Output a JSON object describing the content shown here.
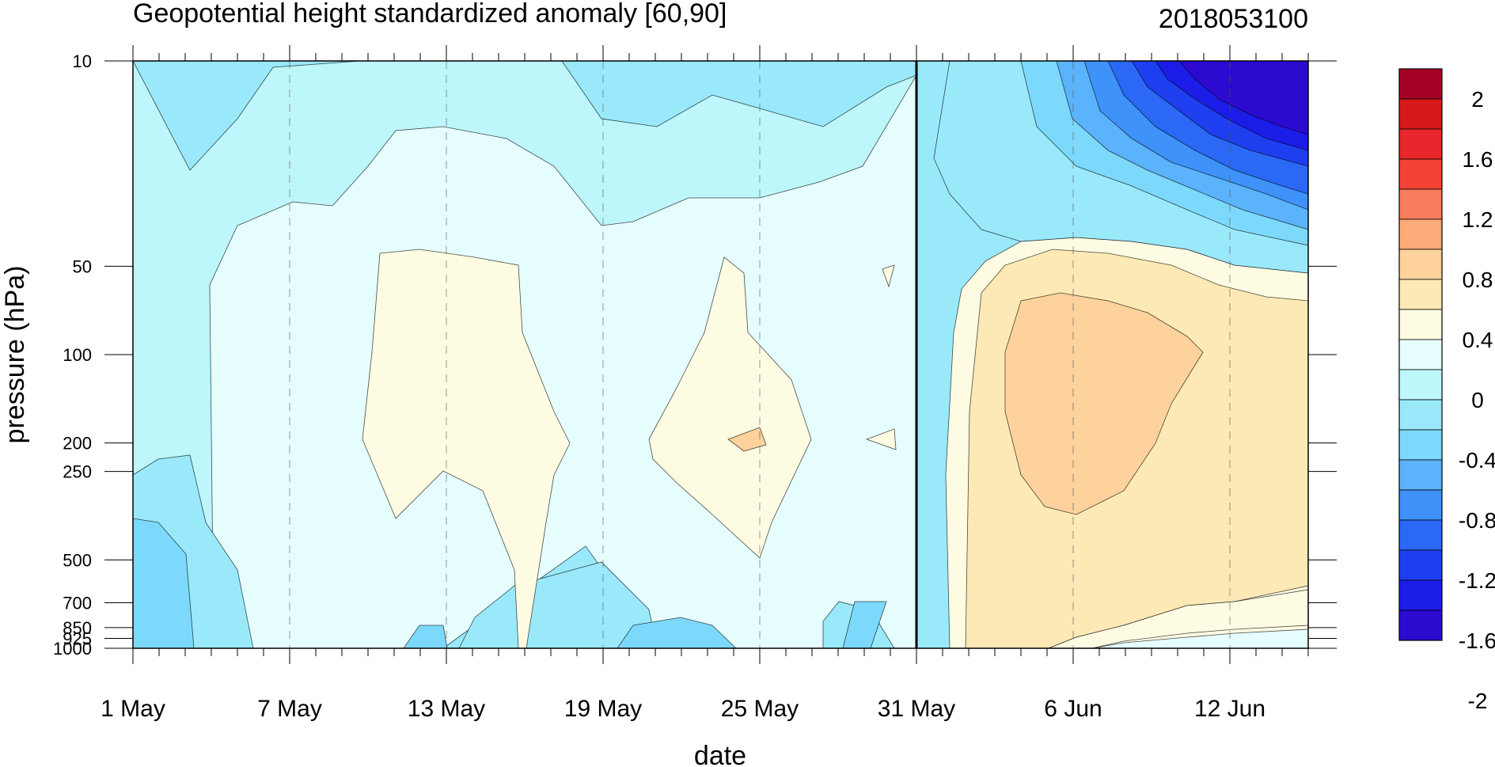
{
  "chart_data": {
    "type": "heatmap",
    "title": "Geopotential height standardized anomaly [60,90]",
    "run_label": "2018053100",
    "xlabel": "date",
    "ylabel": "pressure (hPa)",
    "x_tick_labels": [
      "1 May",
      "7 May",
      "13 May",
      "19 May",
      "25 May",
      "31 May",
      "6 Jun",
      "12 Jun"
    ],
    "x_tick_day_index": [
      0,
      6,
      12,
      18,
      24,
      30,
      36,
      42
    ],
    "x_range_days": [
      0,
      45
    ],
    "y_scale": "log-pressure",
    "y_range_hpa": [
      1000,
      10
    ],
    "y_tick_labels": [
      "10",
      "50",
      "100",
      "200",
      "250",
      "500",
      "700",
      "850",
      "925",
      "1000"
    ],
    "y_tick_values": [
      10,
      50,
      100,
      200,
      250,
      500,
      700,
      850,
      925,
      1000
    ],
    "initialization_day_index": 30,
    "colorbar": {
      "labels": [
        "2",
        "1.6",
        "1.2",
        "0.8",
        "0.4",
        "0",
        "-0.4",
        "-0.8",
        "-1.2",
        "-1.6",
        "-2"
      ],
      "colors": [
        "#a50026",
        "#d7191c",
        "#e8272c",
        "#f44336",
        "#f87c5e",
        "#fcaa78",
        "#fdd29c",
        "#fde9b5",
        "#fefbe3",
        "#e6fdfe",
        "#bdf6fb",
        "#9ae9fb",
        "#7dd9fb",
        "#5bb3fb",
        "#3e92fa",
        "#2a68f5",
        "#1e3ff0",
        "#1c1ce8",
        "#2c0ad0"
      ]
    },
    "contour_levels": [
      -2.2,
      -2.0,
      -1.8,
      -1.6,
      -1.4,
      -1.2,
      -1.0,
      -0.8,
      -0.6,
      -0.4,
      -0.2,
      0,
      0.2,
      0.4,
      0.6
    ]
  }
}
